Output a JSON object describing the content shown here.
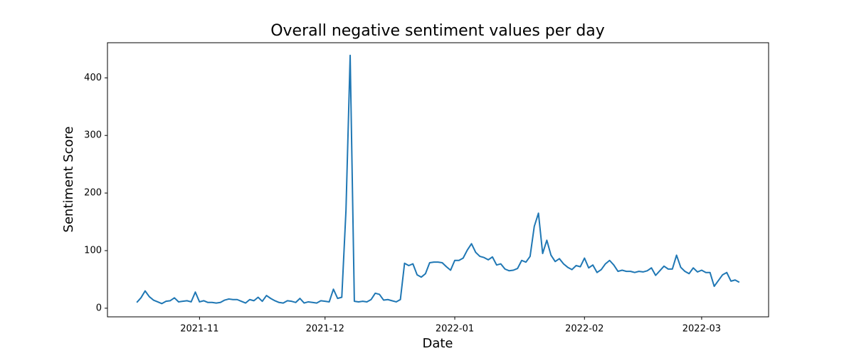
{
  "chart_data": {
    "type": "line",
    "title": "Overall negative sentiment values per day",
    "x_label": "Date",
    "y_label": "Sentiment Score",
    "color": "#1f77b4",
    "grid": false,
    "x": [
      "2021-10-17",
      "2021-10-18",
      "2021-10-19",
      "2021-10-20",
      "2021-10-21",
      "2021-10-22",
      "2021-10-23",
      "2021-10-24",
      "2021-10-25",
      "2021-10-26",
      "2021-10-27",
      "2021-10-28",
      "2021-10-29",
      "2021-10-30",
      "2021-10-31",
      "2021-11-01",
      "2021-11-02",
      "2021-11-03",
      "2021-11-04",
      "2021-11-05",
      "2021-11-06",
      "2021-11-07",
      "2021-11-08",
      "2021-11-09",
      "2021-11-10",
      "2021-11-11",
      "2021-11-12",
      "2021-11-13",
      "2021-11-14",
      "2021-11-15",
      "2021-11-16",
      "2021-11-17",
      "2021-11-18",
      "2021-11-19",
      "2021-11-20",
      "2021-11-21",
      "2021-11-22",
      "2021-11-23",
      "2021-11-24",
      "2021-11-25",
      "2021-11-26",
      "2021-11-27",
      "2021-11-28",
      "2021-11-29",
      "2021-11-30",
      "2021-12-01",
      "2021-12-02",
      "2021-12-03",
      "2021-12-04",
      "2021-12-05",
      "2021-12-06",
      "2021-12-07",
      "2021-12-08",
      "2021-12-09",
      "2021-12-10",
      "2021-12-11",
      "2021-12-12",
      "2021-12-13",
      "2021-12-14",
      "2021-12-15",
      "2021-12-16",
      "2021-12-17",
      "2021-12-18",
      "2021-12-19",
      "2021-12-20",
      "2021-12-21",
      "2021-12-22",
      "2021-12-23",
      "2021-12-24",
      "2021-12-25",
      "2021-12-26",
      "2021-12-27",
      "2021-12-28",
      "2021-12-29",
      "2021-12-30",
      "2021-12-31",
      "2022-01-01",
      "2022-01-02",
      "2022-01-03",
      "2022-01-04",
      "2022-01-05",
      "2022-01-06",
      "2022-01-07",
      "2022-01-08",
      "2022-01-09",
      "2022-01-10",
      "2022-01-11",
      "2022-01-12",
      "2022-01-13",
      "2022-01-14",
      "2022-01-15",
      "2022-01-16",
      "2022-01-17",
      "2022-01-18",
      "2022-01-19",
      "2022-01-20",
      "2022-01-21",
      "2022-01-22",
      "2022-01-23",
      "2022-01-24",
      "2022-01-25",
      "2022-01-26",
      "2022-01-27",
      "2022-01-28",
      "2022-01-29",
      "2022-01-30",
      "2022-01-31",
      "2022-02-01",
      "2022-02-02",
      "2022-02-03",
      "2022-02-04",
      "2022-02-05",
      "2022-02-06",
      "2022-02-07",
      "2022-02-08",
      "2022-02-09",
      "2022-02-10",
      "2022-02-11",
      "2022-02-12",
      "2022-02-13",
      "2022-02-14",
      "2022-02-15",
      "2022-02-16",
      "2022-02-17",
      "2022-02-18",
      "2022-02-19",
      "2022-02-20",
      "2022-02-21",
      "2022-02-22",
      "2022-02-23",
      "2022-02-24",
      "2022-02-25",
      "2022-02-26",
      "2022-02-27",
      "2022-02-28",
      "2022-03-01",
      "2022-03-02",
      "2022-03-03",
      "2022-03-04",
      "2022-03-05",
      "2022-03-06",
      "2022-03-07",
      "2022-03-08",
      "2022-03-09",
      "2022-03-10"
    ],
    "values": [
      10,
      18,
      30,
      20,
      14,
      11,
      8,
      12,
      13,
      18,
      11,
      12,
      13,
      11,
      28,
      11,
      13,
      10,
      10,
      9,
      10,
      14,
      16,
      15,
      15,
      12,
      9,
      15,
      13,
      19,
      12,
      22,
      17,
      13,
      10,
      9,
      13,
      12,
      10,
      17,
      9,
      11,
      10,
      9,
      13,
      12,
      11,
      33,
      17,
      19,
      170,
      439,
      12,
      11,
      12,
      11,
      15,
      26,
      24,
      14,
      15,
      13,
      11,
      15,
      78,
      74,
      77,
      58,
      54,
      60,
      79,
      80,
      80,
      79,
      72,
      66,
      83,
      83,
      87,
      101,
      112,
      97,
      90,
      88,
      84,
      89,
      75,
      77,
      68,
      65,
      66,
      69,
      83,
      80,
      90,
      142,
      165,
      95,
      118,
      92,
      81,
      86,
      77,
      71,
      67,
      74,
      72,
      87,
      70,
      75,
      62,
      67,
      77,
      83,
      75,
      64,
      66,
      64,
      64,
      62,
      64,
      63,
      65,
      70,
      57,
      65,
      73,
      68,
      68,
      92,
      71,
      64,
      60,
      70,
      63,
      66,
      62,
      62,
      38,
      48,
      58,
      62,
      47,
      49,
      45
    ],
    "xlim": [
      "2021-10-10",
      "2022-03-17"
    ],
    "xticks": [
      {
        "value": "2021-11-01",
        "label": "2021-11"
      },
      {
        "value": "2021-12-01",
        "label": "2021-12"
      },
      {
        "value": "2022-01-01",
        "label": "2022-01"
      },
      {
        "value": "2022-02-01",
        "label": "2022-02"
      },
      {
        "value": "2022-03-01",
        "label": "2022-03"
      }
    ],
    "ylim": [
      -15,
      461
    ],
    "yticks": [
      0,
      100,
      200,
      300,
      400
    ]
  }
}
